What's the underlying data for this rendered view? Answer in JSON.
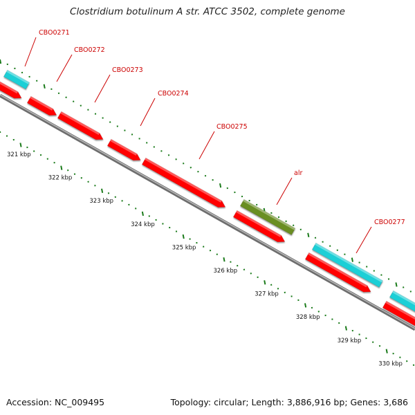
{
  "title": "Clostridium botulinum A str. ATCC 3502, complete genome",
  "footer": {
    "accession_label": "Accession:",
    "accession": "NC_009495",
    "topology_label": "Topology:",
    "topology": "circular",
    "length_label": "Length:",
    "length": "3,886,916 bp",
    "genes_label": "Genes:",
    "genes": "3,686"
  },
  "colors": {
    "cds_reverse": "#ff0000",
    "cds_forward": "#1ecfd6",
    "other_gene": "#6b8e23",
    "label": "#cc0000",
    "tick": "#1a7a1a",
    "backbone": "#808080"
  },
  "ticks": {
    "unit": "kbp",
    "labels": [
      "321 kbp",
      "322 kbp",
      "323 kbp",
      "324 kbp",
      "325 kbp",
      "326 kbp",
      "327 kbp",
      "328 kbp",
      "329 kbp",
      "330 kbp"
    ]
  },
  "features": [
    {
      "label": "CBO0271",
      "strand": "forward",
      "type": "cds"
    },
    {
      "label": "CBO0272",
      "strand": "reverse",
      "type": "cds"
    },
    {
      "label": "CBO0273",
      "strand": "reverse",
      "type": "cds"
    },
    {
      "label": "CBO0274",
      "strand": "reverse",
      "type": "cds"
    },
    {
      "label": "CBO0275",
      "strand": "reverse",
      "type": "cds"
    },
    {
      "label": "alr",
      "strand": "forward",
      "type": "other"
    },
    {
      "label": "CBO0277",
      "strand": "forward",
      "type": "cds"
    }
  ]
}
